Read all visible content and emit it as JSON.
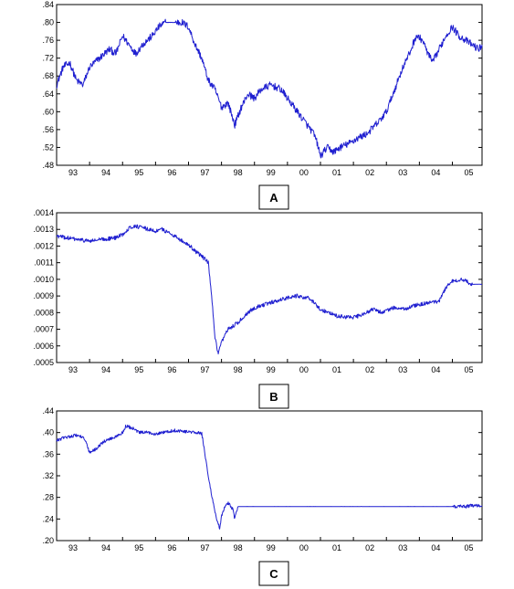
{
  "page": {
    "background": "#ffffff"
  },
  "style": {
    "series_color": "#1f1fd0",
    "frame_color": "#000000"
  },
  "chart_data": [
    {
      "type": "line",
      "panel_label": "A",
      "title": "",
      "xlabel": "",
      "ylabel": "",
      "grid": false,
      "legend": "none",
      "x_ticks": [
        "93",
        "94",
        "95",
        "96",
        "97",
        "98",
        "99",
        "00",
        "01",
        "02",
        "03",
        "04",
        "05"
      ],
      "x_range": [
        1993.0,
        2005.9
      ],
      "y_ticks": [
        ".48",
        ".52",
        ".56",
        ".60",
        ".64",
        ".68",
        ".72",
        ".76",
        ".80",
        ".84"
      ],
      "ylim": [
        0.48,
        0.84
      ],
      "noise": 0.008,
      "series": [
        {
          "x": [
            1993.0,
            1993.2,
            1993.4,
            1993.6,
            1993.8,
            1994.0,
            1994.3,
            1994.6,
            1994.8,
            1995.0,
            1995.2,
            1995.4,
            1995.6,
            1995.9,
            1996.1,
            1996.3,
            1996.6,
            1996.8,
            1997.0,
            1997.2,
            1997.4,
            1997.6,
            1997.8,
            1998.0,
            1998.2,
            1998.4,
            1998.6,
            1998.8,
            1999.0,
            1999.2,
            1999.5,
            1999.8,
            2000.0,
            2000.3,
            2000.6,
            2000.8,
            2000.9,
            2001.0,
            2001.2,
            2001.4,
            2001.6,
            2001.9,
            2002.1,
            2002.4,
            2002.8,
            2003.0,
            2003.3,
            2003.5,
            2003.7,
            2003.9,
            2004.1,
            2004.2,
            2004.4,
            2004.6,
            2004.8,
            2005.0,
            2005.2,
            2005.4,
            2005.6,
            2005.8,
            2005.9
          ],
          "values": [
            0.66,
            0.7,
            0.71,
            0.67,
            0.66,
            0.7,
            0.72,
            0.74,
            0.73,
            0.77,
            0.75,
            0.73,
            0.75,
            0.77,
            0.79,
            0.8,
            0.8,
            0.8,
            0.79,
            0.75,
            0.72,
            0.67,
            0.65,
            0.61,
            0.62,
            0.57,
            0.61,
            0.64,
            0.63,
            0.65,
            0.66,
            0.65,
            0.63,
            0.6,
            0.57,
            0.55,
            0.53,
            0.5,
            0.52,
            0.51,
            0.52,
            0.53,
            0.54,
            0.55,
            0.58,
            0.6,
            0.66,
            0.7,
            0.73,
            0.77,
            0.76,
            0.74,
            0.71,
            0.74,
            0.77,
            0.79,
            0.77,
            0.76,
            0.75,
            0.74,
            0.75
          ]
        }
      ]
    },
    {
      "type": "line",
      "panel_label": "B",
      "title": "",
      "xlabel": "",
      "ylabel": "",
      "grid": false,
      "legend": "none",
      "x_ticks": [
        "93",
        "94",
        "95",
        "96",
        "97",
        "98",
        "99",
        "00",
        "01",
        "02",
        "03",
        "04",
        "05"
      ],
      "x_range": [
        1993.0,
        2005.9
      ],
      "y_ticks": [
        ".0005",
        ".0006",
        ".0007",
        ".0008",
        ".0009",
        ".0010",
        ".0011",
        ".0012",
        ".0013",
        ".0014"
      ],
      "ylim": [
        0.0005,
        0.0014
      ],
      "noise": 1.2e-05,
      "series": [
        {
          "x": [
            1993.0,
            1993.3,
            1993.6,
            1994.0,
            1994.4,
            1994.8,
            1995.0,
            1995.2,
            1995.4,
            1995.6,
            1995.8,
            1996.0,
            1996.2,
            1996.4,
            1996.6,
            1996.8,
            1997.0,
            1997.2,
            1997.4,
            1997.5,
            1997.6,
            1997.7,
            1997.8,
            1997.9,
            1998.0,
            1998.2,
            1998.5,
            1998.8,
            1999.0,
            1999.5,
            2000.0,
            2000.3,
            2000.6,
            2000.8,
            2001.0,
            2001.5,
            2002.0,
            2002.3,
            2002.6,
            2002.9,
            2003.2,
            2003.5,
            2004.0,
            2004.4,
            2004.6,
            2004.8,
            2005.0,
            2005.3,
            2005.6,
            2005.9
          ],
          "values": [
            0.00126,
            0.00125,
            0.00124,
            0.00123,
            0.00124,
            0.00125,
            0.00127,
            0.00131,
            0.00132,
            0.00131,
            0.0013,
            0.00129,
            0.0013,
            0.00128,
            0.00126,
            0.00123,
            0.00121,
            0.00117,
            0.00114,
            0.00112,
            0.0011,
            0.0009,
            0.00065,
            0.00055,
            0.00062,
            0.0007,
            0.00074,
            0.0008,
            0.00083,
            0.00086,
            0.00089,
            0.0009,
            0.00089,
            0.00086,
            0.00082,
            0.00078,
            0.00077,
            0.00079,
            0.00082,
            0.0008,
            0.00083,
            0.00082,
            0.00085,
            0.00086,
            0.00087,
            0.00095,
            0.00099,
            0.001,
            0.00097,
            0.00097
          ]
        }
      ]
    },
    {
      "type": "line",
      "panel_label": "C",
      "title": "",
      "xlabel": "",
      "ylabel": "",
      "grid": false,
      "legend": "none",
      "x_ticks": [
        "93",
        "94",
        "95",
        "96",
        "97",
        "98",
        "99",
        "00",
        "01",
        "02",
        "03",
        "04",
        "05"
      ],
      "x_range": [
        1993.0,
        2005.9
      ],
      "y_ticks": [
        ".20",
        ".24",
        ".28",
        ".32",
        ".36",
        ".40",
        ".44"
      ],
      "ylim": [
        0.2,
        0.44
      ],
      "noise": 0.003,
      "series": [
        {
          "x": [
            1993.0,
            1993.2,
            1993.4,
            1993.6,
            1993.8,
            1993.9,
            1994.0,
            1994.2,
            1994.4,
            1994.6,
            1994.8,
            1995.0,
            1995.1,
            1995.3,
            1995.5,
            1995.7,
            1996.0,
            1996.3,
            1996.6,
            1996.9,
            1997.2,
            1997.4,
            1997.45,
            1997.55,
            1997.65,
            1997.75,
            1997.85,
            1997.95,
            1998.0,
            1998.1,
            1998.2,
            1998.35,
            1998.4,
            1998.5,
            1999.0,
            2000.0,
            2001.0,
            2002.0,
            2003.0,
            2004.0,
            2005.0,
            2005.4,
            2005.6,
            2005.9
          ],
          "values": [
            0.385,
            0.39,
            0.393,
            0.395,
            0.392,
            0.38,
            0.362,
            0.37,
            0.382,
            0.388,
            0.392,
            0.4,
            0.412,
            0.408,
            0.4,
            0.4,
            0.398,
            0.401,
            0.404,
            0.402,
            0.4,
            0.398,
            0.38,
            0.34,
            0.3,
            0.27,
            0.24,
            0.222,
            0.245,
            0.262,
            0.27,
            0.258,
            0.24,
            0.263,
            0.263,
            0.263,
            0.263,
            0.263,
            0.263,
            0.263,
            0.263,
            0.263,
            0.265,
            0.264
          ]
        }
      ]
    }
  ]
}
